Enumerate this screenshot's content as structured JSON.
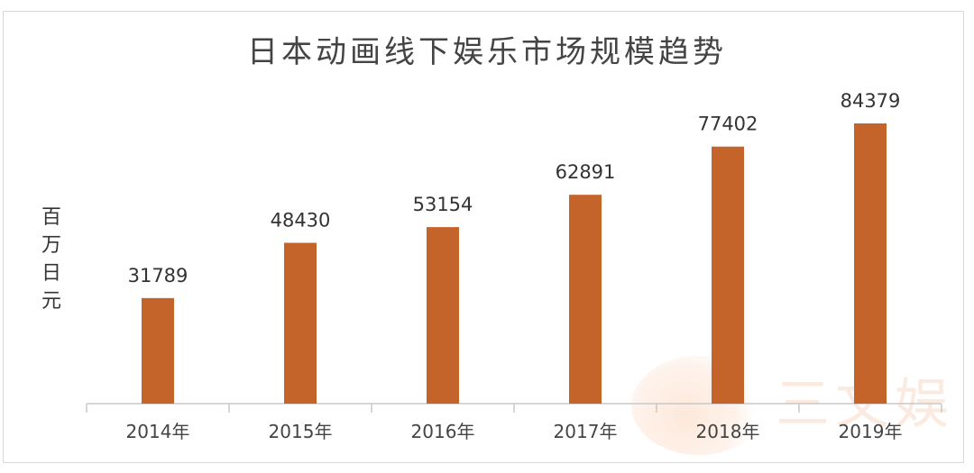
{
  "watermark": "三文娱",
  "chart_data": {
    "type": "bar",
    "title": "日本动画线下娱乐市场规模趋势",
    "ylabel": "百万日元",
    "xlabel": "",
    "categories": [
      "2014年",
      "2015年",
      "2016年",
      "2017年",
      "2018年",
      "2019年"
    ],
    "values": [
      31789,
      48430,
      53154,
      62891,
      77402,
      84379
    ],
    "data_labels": [
      "31789",
      "48430",
      "53154",
      "62891",
      "77402",
      "84379"
    ],
    "ylim": [
      0,
      90000
    ],
    "grid": false,
    "bar_color": "#c5642a"
  }
}
